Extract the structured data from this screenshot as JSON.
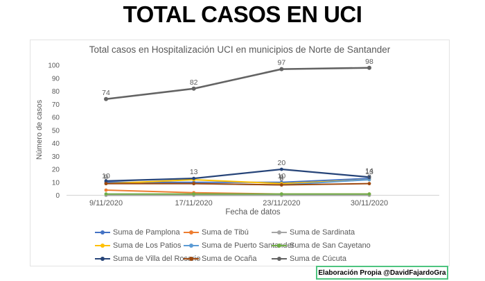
{
  "page_title": "TOTAL CASOS EN UCI",
  "credit": "Elaboración Propia @DavidFajardoGra",
  "credit_border_color": "#4dc47f",
  "text_color": "#595959",
  "axis_color": "#d9d9d9",
  "chart_data": {
    "type": "line",
    "title": "Total casos en Hospitalización UCI en municipios de Norte de Santander",
    "xlabel": "Fecha de datos",
    "ylabel": "Número de casos",
    "ylim": [
      0,
      100
    ],
    "ytick_step": 10,
    "grid": false,
    "legend_position": "bottom",
    "categories": [
      "9/11/2020",
      "17/11/2020",
      "23/11/2020",
      "30/11/2020"
    ],
    "series": [
      {
        "name": "Suma de Pamplona",
        "color": "#4472C4",
        "line_width": 2,
        "values": [
          10,
          10,
          10,
          13
        ]
      },
      {
        "name": "Suma de Tibú",
        "color": "#ED7D31",
        "line_width": 2,
        "values": [
          4,
          2,
          1,
          1
        ]
      },
      {
        "name": "Suma de Sardinata",
        "color": "#A5A5A5",
        "line_width": 2,
        "values": [
          0,
          0,
          0,
          0
        ]
      },
      {
        "name": "Suma de Los Patios",
        "color": "#FFC000",
        "line_width": 2,
        "values": [
          9,
          12,
          9,
          12
        ]
      },
      {
        "name": "Suma de Puerto Santander",
        "color": "#5B9BD5",
        "line_width": 2,
        "values": [
          9,
          9,
          8,
          12
        ]
      },
      {
        "name": "Suma de San Cayetano",
        "color": "#70AD47",
        "line_width": 2,
        "values": [
          1,
          1,
          1,
          1
        ]
      },
      {
        "name": "Suma de Villa del Rosario",
        "color": "#264478",
        "line_width": 2.2,
        "values": [
          11,
          13,
          20,
          14
        ]
      },
      {
        "name": "Suma de Ocaña",
        "color": "#9E480E",
        "line_width": 2,
        "values": [
          9,
          9,
          8,
          9
        ]
      },
      {
        "name": "Suma de Cúcuta",
        "color": "#636363",
        "line_width": 2.6,
        "values": [
          74,
          82,
          97,
          98
        ]
      }
    ],
    "annotations": [
      {
        "x": 0,
        "v": 74,
        "text": "74"
      },
      {
        "x": 1,
        "v": 82,
        "text": "82"
      },
      {
        "x": 2,
        "v": 97,
        "text": "97"
      },
      {
        "x": 3,
        "v": 98,
        "text": "98"
      },
      {
        "x": 0,
        "v": 10,
        "text": "10"
      },
      {
        "x": 0,
        "v": 9,
        "text": "9"
      },
      {
        "x": 1,
        "v": 13,
        "text": "13"
      },
      {
        "x": 2,
        "v": 20,
        "text": "20"
      },
      {
        "x": 2,
        "v": 10,
        "text": "10"
      },
      {
        "x": 2,
        "v": 9,
        "text": "9"
      },
      {
        "x": 2,
        "v": 8,
        "text": "8"
      },
      {
        "x": 3,
        "v": 14,
        "text": "14"
      },
      {
        "x": 3,
        "v": 13,
        "text": "13"
      },
      {
        "x": 3,
        "v": 9,
        "text": "9"
      }
    ]
  }
}
